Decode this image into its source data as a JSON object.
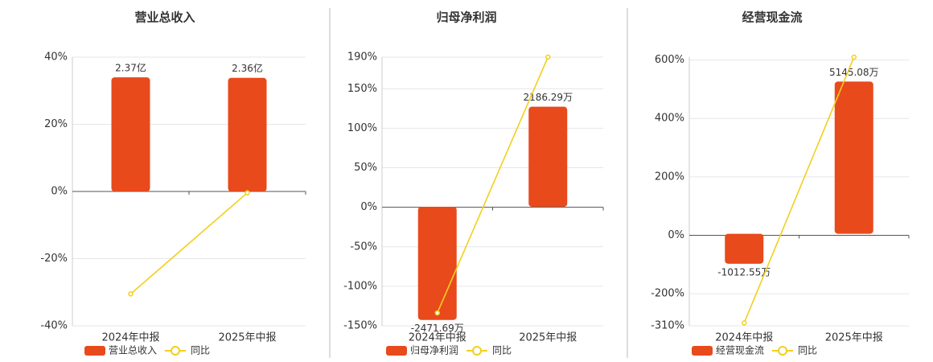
{
  "chart_data": [
    {
      "type": "bar-line",
      "title": "营业总收入",
      "categories": [
        "2024年中报",
        "2025年中报"
      ],
      "ylim": [
        -40,
        40
      ],
      "yticks": [
        {
          "value": -40,
          "label": "-40%"
        },
        {
          "value": -20,
          "label": "-20%"
        },
        {
          "value": 0,
          "label": "0%"
        },
        {
          "value": 20,
          "label": "20%"
        },
        {
          "value": 40,
          "label": "40%"
        }
      ],
      "y2lim": [
        -2.79,
        2.79
      ],
      "grid": true,
      "series": [
        {
          "name": "营业总收入",
          "color": "#e84a1c",
          "axis": "y2",
          "values": [
            2.37,
            2.36
          ],
          "value_labels": [
            "2.37亿",
            "2.36亿"
          ]
        },
        {
          "name": "同比",
          "color": "#f2cf1f",
          "values": [
            -30.5,
            -0.4
          ]
        }
      ]
    },
    {
      "type": "bar-line",
      "title": "归母净利润",
      "categories": [
        "2024年中报",
        "2025年中报"
      ],
      "ylim": [
        -150,
        190
      ],
      "yticks": [
        {
          "value": -150,
          "label": "-150%"
        },
        {
          "value": -100,
          "label": "-100%"
        },
        {
          "value": -50,
          "label": "-50%"
        },
        {
          "value": 0,
          "label": "0%"
        },
        {
          "value": 50,
          "label": "50%"
        },
        {
          "value": 100,
          "label": "100%"
        },
        {
          "value": 150,
          "label": "150%"
        },
        {
          "value": 190,
          "label": "190%"
        }
      ],
      "y2lim": [
        -2600,
        3270
      ],
      "grid": true,
      "series": [
        {
          "name": "归母净利润",
          "color": "#e84a1c",
          "axis": "y2",
          "values": [
            -2471.69,
            2186.29
          ],
          "value_labels": [
            "-2471.69万",
            "2186.29万"
          ]
        },
        {
          "name": "同比",
          "color": "#f2cf1f",
          "values": [
            -133.7,
            190
          ]
        }
      ]
    },
    {
      "type": "bar-line",
      "title": "经营现金流",
      "categories": [
        "2024年中报",
        "2025年中报"
      ],
      "ylim": [
        -310,
        610
      ],
      "yticks": [
        {
          "value": -310,
          "label": "-310%"
        },
        {
          "value": -200,
          "label": "-200%"
        },
        {
          "value": 0,
          "label": "0%"
        },
        {
          "value": 200,
          "label": "200%"
        },
        {
          "value": 400,
          "label": "400%"
        },
        {
          "value": 600,
          "label": "600%"
        }
      ],
      "y2lim": [
        -3110,
        5970
      ],
      "grid": true,
      "series": [
        {
          "name": "经营现金流",
          "color": "#e84a1c",
          "axis": "y2",
          "values": [
            -1012.55,
            5145.08
          ],
          "value_labels": [
            "-1012.55万",
            "5145.08万"
          ]
        },
        {
          "name": "同比",
          "color": "#f2cf1f",
          "values": [
            -300,
            610
          ]
        }
      ]
    }
  ]
}
